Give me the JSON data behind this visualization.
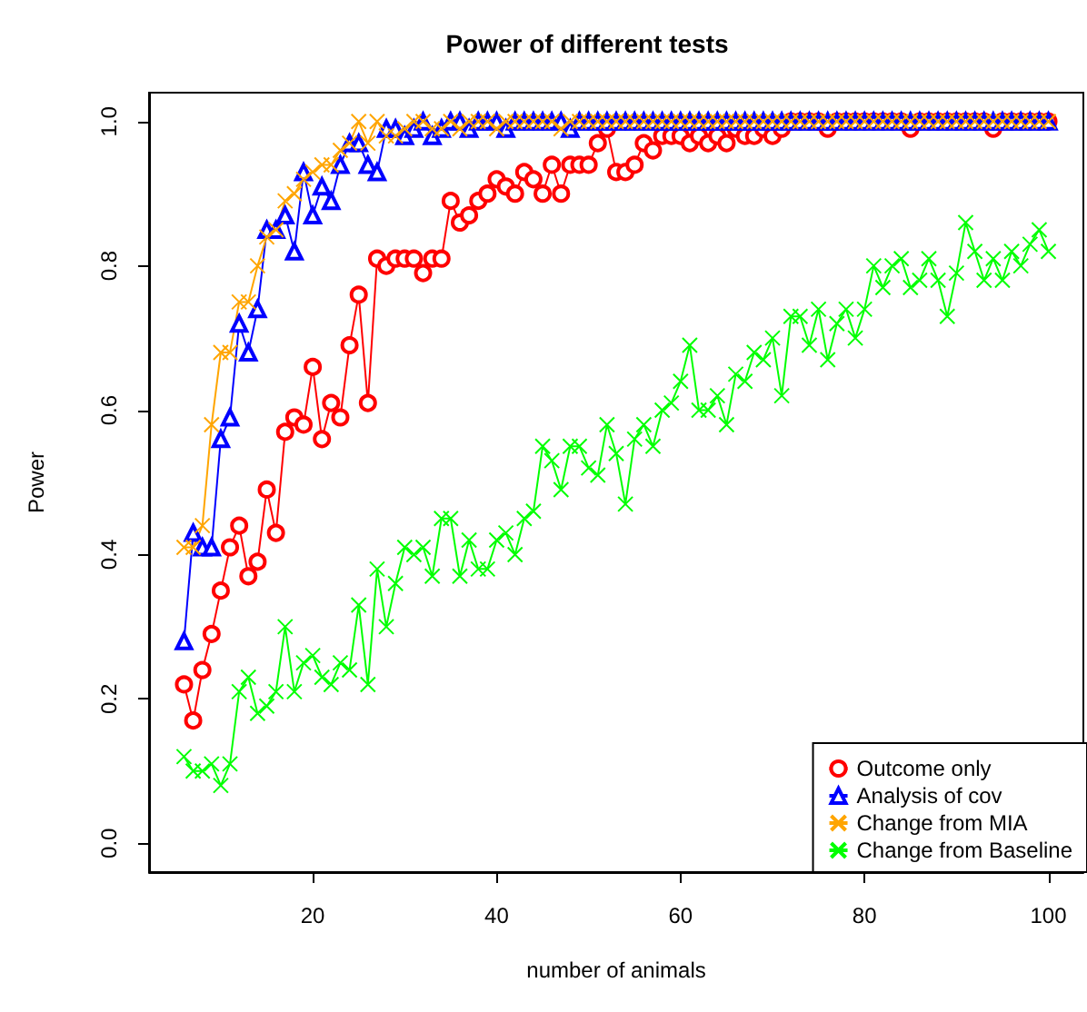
{
  "chart_data": {
    "type": "line",
    "title": "Power of different tests",
    "xlabel": "number of animals",
    "ylabel": "Power",
    "x": [
      6,
      7,
      8,
      9,
      10,
      11,
      12,
      13,
      14,
      15,
      16,
      17,
      18,
      19,
      20,
      21,
      22,
      23,
      24,
      25,
      26,
      27,
      28,
      29,
      30,
      31,
      32,
      33,
      34,
      35,
      36,
      37,
      38,
      39,
      40,
      41,
      42,
      43,
      44,
      45,
      46,
      47,
      48,
      49,
      50,
      51,
      52,
      53,
      54,
      55,
      56,
      57,
      58,
      59,
      60,
      61,
      62,
      63,
      64,
      65,
      66,
      67,
      68,
      69,
      70,
      71,
      72,
      73,
      74,
      75,
      76,
      77,
      78,
      79,
      80,
      81,
      82,
      83,
      84,
      85,
      86,
      87,
      88,
      89,
      90,
      91,
      92,
      93,
      94,
      95,
      96,
      97,
      98,
      99,
      100
    ],
    "series": [
      {
        "name": "Outcome only",
        "color": "#ff0000",
        "marker": "circle",
        "values": [
          0.22,
          0.17,
          0.24,
          0.29,
          0.35,
          0.41,
          0.44,
          0.37,
          0.39,
          0.49,
          0.43,
          0.57,
          0.59,
          0.58,
          0.66,
          0.56,
          0.61,
          0.59,
          0.69,
          0.76,
          0.61,
          0.81,
          0.8,
          0.81,
          0.81,
          0.81,
          0.79,
          0.81,
          0.81,
          0.89,
          0.86,
          0.87,
          0.89,
          0.9,
          0.92,
          0.91,
          0.9,
          0.93,
          0.92,
          0.9,
          0.94,
          0.9,
          0.94,
          0.94,
          0.94,
          0.97,
          0.99,
          0.93,
          0.93,
          0.94,
          0.97,
          0.96,
          0.98,
          0.98,
          0.98,
          0.97,
          0.98,
          0.97,
          0.98,
          0.97,
          0.99,
          0.98,
          0.98,
          0.99,
          0.98,
          0.99,
          1.0,
          1.0,
          1.0,
          1.0,
          0.99,
          1.0,
          1.0,
          1.0,
          1.0,
          1.0,
          1.0,
          1.0,
          1.0,
          0.99,
          1.0,
          1.0,
          1.0,
          1.0,
          1.0,
          1.0,
          1.0,
          1.0,
          0.99,
          1.0,
          1.0,
          1.0,
          1.0,
          1.0,
          1.0
        ]
      },
      {
        "name": "Analysis of cov",
        "color": "#0000ff",
        "marker": "triangle",
        "values": [
          0.28,
          0.43,
          0.41,
          0.41,
          0.56,
          0.59,
          0.72,
          0.68,
          0.74,
          0.85,
          0.85,
          0.87,
          0.82,
          0.93,
          0.87,
          0.91,
          0.89,
          0.94,
          0.97,
          0.97,
          0.94,
          0.93,
          0.99,
          0.99,
          0.98,
          0.99,
          1.0,
          0.98,
          0.99,
          1.0,
          1.0,
          0.99,
          1.0,
          1.0,
          1.0,
          0.99,
          1.0,
          1.0,
          1.0,
          1.0,
          1.0,
          1.0,
          0.99,
          1.0,
          1.0,
          1.0,
          1.0,
          1.0,
          1.0,
          1.0,
          1.0,
          1.0,
          1.0,
          1.0,
          1.0,
          1.0,
          1.0,
          1.0,
          1.0,
          1.0,
          1.0,
          1.0,
          1.0,
          1.0,
          1.0,
          1.0,
          1.0,
          1.0,
          1.0,
          1.0,
          1.0,
          1.0,
          1.0,
          1.0,
          1.0,
          1.0,
          1.0,
          1.0,
          1.0,
          1.0,
          1.0,
          1.0,
          1.0,
          1.0,
          1.0,
          1.0,
          1.0,
          1.0,
          1.0,
          1.0,
          1.0,
          1.0,
          1.0,
          1.0,
          1.0
        ]
      },
      {
        "name": "Change from MIA",
        "color": "#ffa500",
        "marker": "cross",
        "values": [
          0.41,
          0.41,
          0.44,
          0.58,
          0.68,
          0.68,
          0.75,
          0.75,
          0.8,
          0.84,
          0.85,
          0.89,
          0.9,
          0.92,
          0.93,
          0.94,
          0.94,
          0.96,
          0.97,
          1.0,
          0.97,
          1.0,
          0.98,
          0.98,
          0.99,
          1.0,
          1.0,
          0.99,
          0.99,
          1.0,
          0.99,
          1.0,
          1.0,
          1.0,
          0.99,
          1.0,
          1.0,
          1.0,
          1.0,
          1.0,
          1.0,
          0.99,
          1.0,
          1.0,
          1.0,
          1.0,
          1.0,
          1.0,
          1.0,
          1.0,
          1.0,
          1.0,
          1.0,
          1.0,
          1.0,
          1.0,
          1.0,
          1.0,
          1.0,
          1.0,
          1.0,
          1.0,
          1.0,
          1.0,
          1.0,
          1.0,
          1.0,
          1.0,
          1.0,
          1.0,
          1.0,
          1.0,
          1.0,
          1.0,
          1.0,
          1.0,
          1.0,
          1.0,
          1.0,
          1.0,
          1.0,
          1.0,
          1.0,
          1.0,
          1.0,
          1.0,
          1.0,
          1.0,
          1.0,
          1.0,
          1.0,
          1.0,
          1.0,
          1.0,
          1.0
        ]
      },
      {
        "name": "Change from Baseline",
        "color": "#00ff00",
        "marker": "cross",
        "values": [
          0.12,
          0.1,
          0.1,
          0.11,
          0.08,
          0.11,
          0.21,
          0.23,
          0.18,
          0.19,
          0.21,
          0.3,
          0.21,
          0.25,
          0.26,
          0.23,
          0.22,
          0.25,
          0.24,
          0.33,
          0.22,
          0.38,
          0.3,
          0.36,
          0.41,
          0.4,
          0.41,
          0.37,
          0.45,
          0.45,
          0.37,
          0.42,
          0.38,
          0.38,
          0.42,
          0.43,
          0.4,
          0.45,
          0.46,
          0.55,
          0.53,
          0.49,
          0.55,
          0.55,
          0.52,
          0.51,
          0.58,
          0.54,
          0.47,
          0.56,
          0.58,
          0.55,
          0.6,
          0.61,
          0.64,
          0.69,
          0.6,
          0.6,
          0.62,
          0.58,
          0.65,
          0.64,
          0.68,
          0.67,
          0.7,
          0.62,
          0.73,
          0.73,
          0.69,
          0.74,
          0.67,
          0.72,
          0.74,
          0.7,
          0.74,
          0.8,
          0.77,
          0.8,
          0.81,
          0.77,
          0.78,
          0.81,
          0.78,
          0.73,
          0.79,
          0.86,
          0.82,
          0.78,
          0.81,
          0.78,
          0.82,
          0.8,
          0.83,
          0.85,
          0.82
        ]
      }
    ],
    "xlim": [
      2.2,
      103.8
    ],
    "xticks": [
      20,
      40,
      60,
      80,
      100
    ],
    "ylim": [
      -0.04,
      1.04
    ],
    "yticks": [
      {
        "value": 0,
        "label": "0.0"
      },
      0.2,
      0.4,
      0.6,
      0.8,
      {
        "value": 1,
        "label": "1.0"
      }
    ],
    "grid": false,
    "legend": "bottom right",
    "line_style": "solid"
  }
}
